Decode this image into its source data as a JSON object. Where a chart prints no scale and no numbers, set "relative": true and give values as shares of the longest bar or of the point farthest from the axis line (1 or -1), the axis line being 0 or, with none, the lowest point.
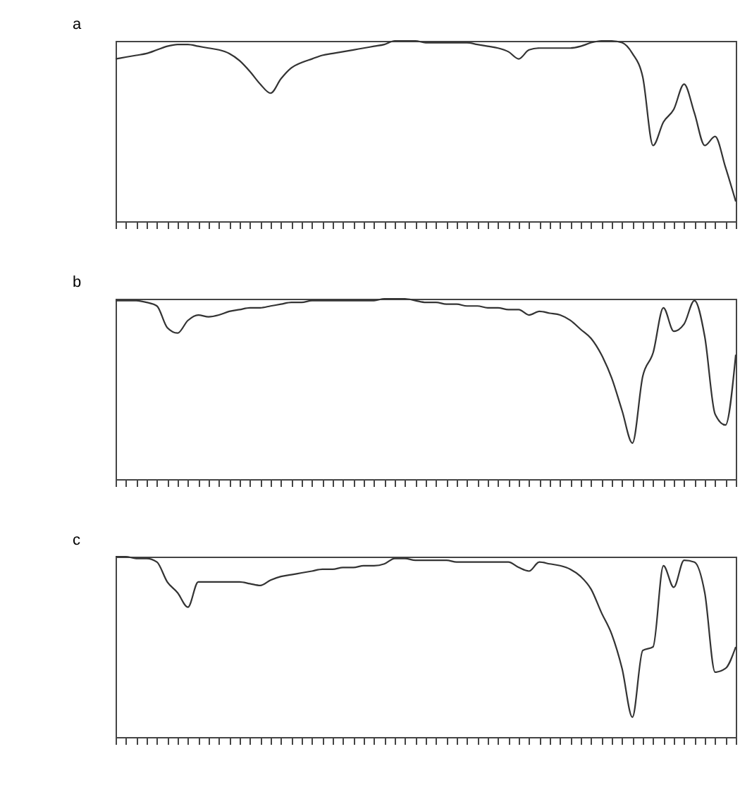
{
  "chart_data": [
    {
      "type": "line",
      "title": "a",
      "relative": true,
      "categories": [
        null,
        null,
        null,
        null,
        null,
        null,
        null,
        null,
        null,
        null,
        null,
        null,
        null,
        null,
        null,
        null,
        null,
        null,
        null,
        null,
        null,
        null,
        null,
        null,
        null,
        null,
        null,
        null,
        null,
        null,
        null,
        null,
        null,
        null,
        null,
        null,
        null,
        null,
        null,
        null,
        null,
        null,
        null,
        null,
        null,
        null,
        null,
        null,
        null,
        null,
        null,
        null,
        null,
        null,
        null,
        null,
        null,
        null,
        null,
        null,
        null
      ],
      "series": [
        {
          "color": "#333333",
          "values": [
            0.9,
            0.91,
            0.92,
            0.93,
            0.95,
            0.97,
            0.98,
            0.98,
            0.97,
            0.96,
            0.95,
            0.93,
            0.89,
            0.83,
            0.76,
            0.71,
            0.79,
            0.85,
            0.88,
            0.9,
            0.92,
            0.93,
            0.94,
            0.95,
            0.96,
            0.97,
            0.98,
            1.0,
            1.0,
            1.0,
            0.99,
            0.99,
            0.99,
            0.99,
            0.99,
            0.98,
            0.97,
            0.96,
            0.94,
            0.9,
            0.95,
            0.96,
            0.96,
            0.96,
            0.96,
            0.97,
            0.99,
            1.0,
            1.0,
            0.99,
            0.93,
            0.8,
            0.42,
            0.55,
            0.62,
            0.76,
            0.6,
            0.42,
            0.47,
            0.3,
            0.11
          ]
        }
      ]
    },
    {
      "type": "line",
      "title": "b",
      "relative": true,
      "categories": [
        null,
        null,
        null,
        null,
        null,
        null,
        null,
        null,
        null,
        null,
        null,
        null,
        null,
        null,
        null,
        null,
        null,
        null,
        null,
        null,
        null,
        null,
        null,
        null,
        null,
        null,
        null,
        null,
        null,
        null,
        null,
        null,
        null,
        null,
        null,
        null,
        null,
        null,
        null,
        null,
        null,
        null,
        null,
        null,
        null,
        null,
        null,
        null,
        null,
        null,
        null,
        null,
        null,
        null,
        null,
        null,
        null,
        null,
        null,
        null,
        null
      ],
      "series": [
        {
          "color": "#333333",
          "values": [
            0.99,
            0.99,
            0.99,
            0.98,
            0.96,
            0.84,
            0.81,
            0.88,
            0.91,
            0.9,
            0.91,
            0.93,
            0.94,
            0.95,
            0.95,
            0.96,
            0.97,
            0.98,
            0.98,
            0.99,
            0.99,
            0.99,
            0.99,
            0.99,
            0.99,
            0.99,
            1.0,
            1.0,
            1.0,
            0.99,
            0.98,
            0.98,
            0.97,
            0.97,
            0.96,
            0.96,
            0.95,
            0.95,
            0.94,
            0.94,
            0.91,
            0.93,
            0.92,
            0.91,
            0.88,
            0.83,
            0.78,
            0.69,
            0.56,
            0.38,
            0.2,
            0.57,
            0.7,
            0.95,
            0.82,
            0.86,
            0.99,
            0.79,
            0.36,
            0.3,
            0.69
          ]
        }
      ]
    },
    {
      "type": "line",
      "title": "c",
      "relative": true,
      "categories": [
        null,
        null,
        null,
        null,
        null,
        null,
        null,
        null,
        null,
        null,
        null,
        null,
        null,
        null,
        null,
        null,
        null,
        null,
        null,
        null,
        null,
        null,
        null,
        null,
        null,
        null,
        null,
        null,
        null,
        null,
        null,
        null,
        null,
        null,
        null,
        null,
        null,
        null,
        null,
        null,
        null,
        null,
        null,
        null,
        null,
        null,
        null,
        null,
        null,
        null,
        null,
        null,
        null,
        null,
        null,
        null,
        null,
        null,
        null,
        null,
        null
      ],
      "series": [
        {
          "color": "#333333",
          "values": [
            1.0,
            1.0,
            0.99,
            0.99,
            0.97,
            0.86,
            0.8,
            0.72,
            0.86,
            0.86,
            0.86,
            0.86,
            0.86,
            0.85,
            0.84,
            0.87,
            0.89,
            0.9,
            0.91,
            0.92,
            0.93,
            0.93,
            0.94,
            0.94,
            0.95,
            0.95,
            0.96,
            0.99,
            0.99,
            0.98,
            0.98,
            0.98,
            0.98,
            0.97,
            0.97,
            0.97,
            0.97,
            0.97,
            0.97,
            0.94,
            0.92,
            0.97,
            0.96,
            0.95,
            0.93,
            0.89,
            0.82,
            0.69,
            0.57,
            0.38,
            0.11,
            0.48,
            0.5,
            0.95,
            0.83,
            0.98,
            0.97,
            0.8,
            0.36,
            0.38,
            0.5
          ]
        }
      ]
    }
  ]
}
